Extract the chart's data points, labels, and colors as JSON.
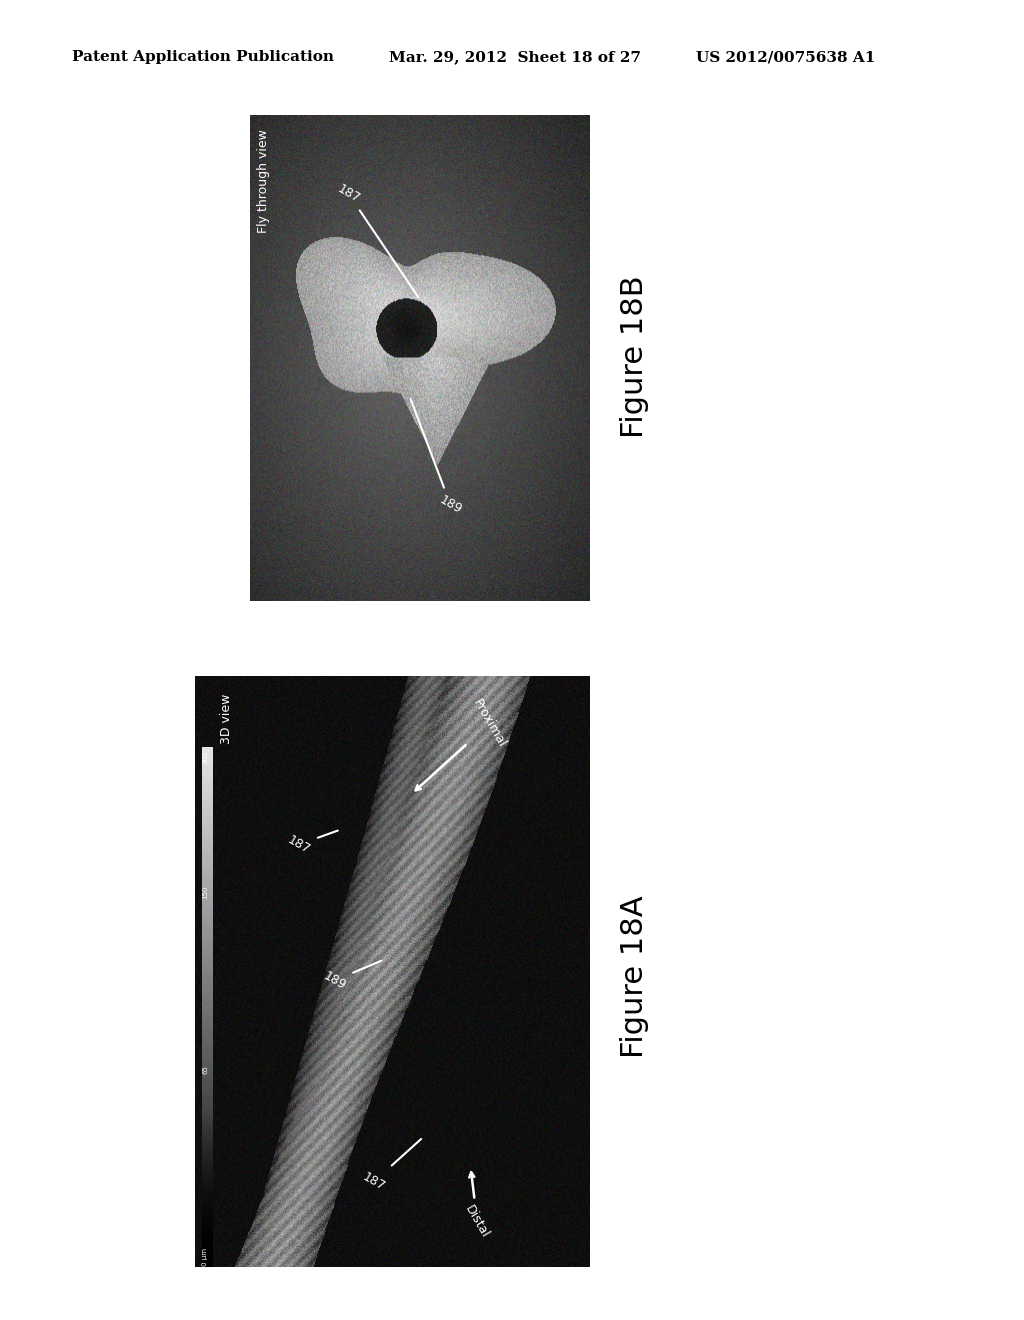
{
  "background_color": "#ffffff",
  "header_left": "Patent Application Publication",
  "header_mid": "Mar. 29, 2012  Sheet 18 of 27",
  "header_right": "US 2012/0075638 A1",
  "header_fontsize": 11,
  "fig18a_label": "Figure 18A",
  "fig18b_label": "Figure 18B",
  "fig18a_caption": "3D view",
  "fig18b_caption": "Fly through view",
  "label_189_a": "189",
  "label_187_a_top": "187",
  "label_187_a_bot": "187",
  "label_189_b": "189",
  "label_187_b": "187",
  "label_distal": "Distal",
  "label_proximal": "Proximal",
  "colorbar_labels": [
    "300",
    "150",
    "65",
    "0 μm"
  ]
}
